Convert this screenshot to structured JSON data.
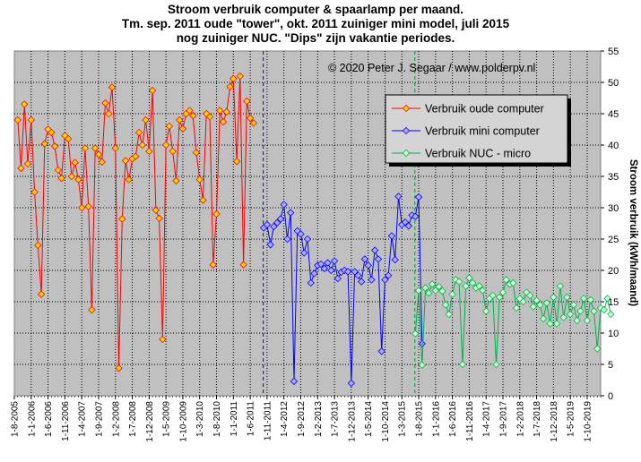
{
  "chart_data": {
    "type": "line",
    "title_lines": [
      "Stroom verbruik computer & spaarlamp per maand.",
      "Tm. sep. 2011 oude \"tower\", okt. 2011 zuiniger mini model, juli 2015",
      "nog zuiniger NUC. \"Dips\" zijn vakantie periodes."
    ],
    "annotation": "© 2020 Peter J. Segaar / www.polderpv.nl",
    "ylabel": "Stroom verbruik (kWh/maand)",
    "xlabel": "",
    "ylim": [
      0,
      55
    ],
    "yticks": [
      0,
      5,
      10,
      15,
      20,
      25,
      30,
      35,
      40,
      45,
      50,
      55
    ],
    "x_tick_labels": [
      "1-8-2005",
      "1-1-2006",
      "1-6-2006",
      "1-11-2006",
      "1-4-2007",
      "1-9-2007",
      "1-2-2008",
      "1-7-2008",
      "1-12-2008",
      "1-5-2009",
      "1-10-2009",
      "1-3-2010",
      "1-8-2010",
      "1-1-2011",
      "1-6-2011",
      "1-11-2011",
      "1-4-2012",
      "1-9-2012",
      "1-2-2013",
      "1-7-2013",
      "1-12-2013",
      "1-5-2014",
      "1-10-2014",
      "1-3-2015",
      "1-8-2015",
      "1-1-2016",
      "1-6-2016",
      "1-11-2016",
      "1-4-2017",
      "1-9-2017",
      "1-2-2018",
      "1-7-2018",
      "1-12-2018",
      "1-5-2019",
      "1-10-2019"
    ],
    "x_start": "2005-08",
    "x_end": "2020-02",
    "grid": true,
    "legend_position": "top-right",
    "vertical_markers": [
      {
        "x": "2011-10",
        "color": "#0000ff"
      },
      {
        "x": "2015-07",
        "color": "#009933"
      }
    ],
    "series": [
      {
        "name": "Verbruik oude computer",
        "color": "#ff0000",
        "marker_fill": "#ffd700",
        "start": "2005-09",
        "values": [
          44,
          36.3,
          46.5,
          37,
          44,
          32.5,
          24,
          16.2,
          40.2,
          42.5,
          42,
          39.8,
          36,
          34.7,
          41.5,
          41,
          35,
          37.2,
          34.5,
          30,
          39.5,
          30.2,
          13.7,
          39.5,
          38.5,
          37.3,
          46.7,
          45,
          49.2,
          39.5,
          4.4,
          28.2,
          37.5,
          34.5,
          37.8,
          38.2,
          42,
          40,
          44,
          39,
          48.7,
          29.6,
          28.3,
          9,
          40,
          43,
          39,
          34.3,
          44,
          42.6,
          45,
          45.5,
          44.7,
          38.8,
          34.5,
          31.2,
          45,
          44.5,
          20.9,
          29,
          45.5,
          43.7,
          45.3,
          49.3,
          50.6,
          37.4,
          51,
          20.9,
          47,
          44.3,
          43.5
        ]
      },
      {
        "name": "Verbruik mini computer",
        "color": "#0000ff",
        "marker_fill": "#aaaaff",
        "start": "2011-10",
        "values": [
          26.8,
          27.3,
          24.1,
          27,
          27.6,
          28.2,
          30.5,
          25,
          29.2,
          2.3,
          26.3,
          25.8,
          22.8,
          25,
          18,
          19.5,
          20.8,
          21,
          20.3,
          21.2,
          20,
          21.5,
          18.7,
          19.7,
          20,
          19.8,
          2,
          19.8,
          19.2,
          18.2,
          21.8,
          20.8,
          18.5,
          23.2,
          21.8,
          7.1,
          18.5,
          19.2,
          25.5,
          21.7,
          31.8,
          27.3,
          27.7,
          27.1,
          28.8,
          28.6,
          31.7,
          8.3
        ]
      },
      {
        "name": "Verbruik NUC - micro",
        "color": "#00b050",
        "marker_fill": "#ccffcc",
        "start": "2015-07",
        "values": [
          9.9,
          16.8,
          4.9,
          17.2,
          16.4,
          17.8,
          16.8,
          17.4,
          16.7,
          14.5,
          13,
          16.2,
          18.5,
          18.2,
          5,
          17.5,
          18.8,
          18,
          17.2,
          17.5,
          16.8,
          13.5,
          15.5,
          16,
          5,
          15.7,
          16.5,
          18.5,
          17.8,
          18,
          14,
          15.5,
          15,
          16.5,
          16,
          14.2,
          15.2,
          14.5,
          12.3,
          14.8,
          11.5,
          15.7,
          11.5,
          17.5,
          12.5,
          15.7,
          13,
          14.5,
          12,
          13.5,
          15.5,
          12,
          15.3,
          13.5,
          7.5,
          14,
          13.7,
          15.5,
          13
        ]
      }
    ]
  }
}
